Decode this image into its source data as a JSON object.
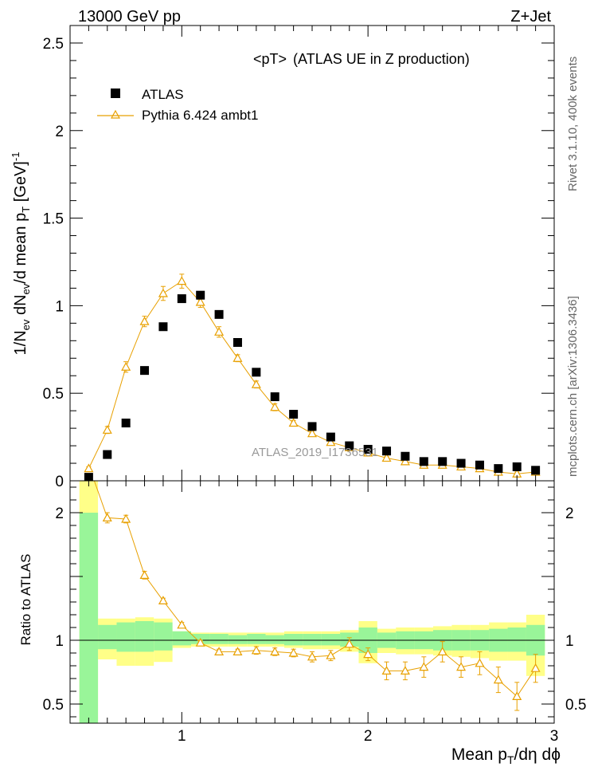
{
  "header": {
    "left": "13000 GeV pp",
    "right": "Z+Jet"
  },
  "side_labels": {
    "rivet": "Rivet 3.1.10,  400k events",
    "mcplots": "mcplots.cern.ch [arXiv:1306.3436]"
  },
  "chart_data": {
    "type": "scatter",
    "title": "<pT>",
    "title_note": "(ATLAS UE in Z production)",
    "watermark": "ATLAS_2019_I1736531",
    "xlabel": {
      "main": "Mean p",
      "sub": "T",
      "tail": "/dη dϕ"
    },
    "xlim": [
      0.4,
      3.0
    ],
    "x_ticks": [
      {
        "value": 1,
        "label": "1"
      },
      {
        "value": 2,
        "label": "2"
      },
      {
        "value": 3,
        "label": "3"
      }
    ],
    "top": {
      "ylabel": {
        "p1": "1/N",
        "s1": "ev",
        "p2": " dN",
        "s2": "ev",
        "p3": "/d mean p",
        "s3": "T",
        "p4": " [GeV]",
        "sup": "-1"
      },
      "ylim": [
        0,
        2.6
      ],
      "y_ticks": [
        {
          "value": 0,
          "label": "0"
        },
        {
          "value": 0.5,
          "label": "0.5"
        },
        {
          "value": 1,
          "label": "1"
        },
        {
          "value": 1.5,
          "label": "1.5"
        },
        {
          "value": 2,
          "label": "2"
        },
        {
          "value": 2.5,
          "label": "2.5"
        }
      ],
      "legend": {
        "position": "top-left",
        "data_label": "ATLAS",
        "mc_label": "Pythia 6.424 ambt1"
      },
      "data": {
        "name": "ATLAS",
        "x": [
          0.5,
          0.6,
          0.7,
          0.8,
          0.9,
          1.0,
          1.1,
          1.2,
          1.3,
          1.4,
          1.5,
          1.6,
          1.7,
          1.8,
          1.9,
          2.0,
          2.1,
          2.2,
          2.3,
          2.4,
          2.5,
          2.6,
          2.7,
          2.8,
          2.9
        ],
        "y": [
          0.02,
          0.15,
          0.33,
          0.63,
          0.88,
          1.04,
          1.06,
          0.95,
          0.79,
          0.62,
          0.48,
          0.38,
          0.31,
          0.25,
          0.2,
          0.18,
          0.17,
          0.14,
          0.11,
          0.11,
          0.1,
          0.09,
          0.07,
          0.08,
          0.06
        ]
      },
      "mc": {
        "name": "Pythia 6.424 ambt1",
        "color": "#e8a000",
        "x": [
          0.5,
          0.6,
          0.7,
          0.8,
          0.9,
          1.0,
          1.1,
          1.2,
          1.3,
          1.4,
          1.5,
          1.6,
          1.7,
          1.8,
          1.9,
          2.0,
          2.1,
          2.2,
          2.3,
          2.4,
          2.5,
          2.6,
          2.7,
          2.8,
          2.9
        ],
        "y": [
          0.07,
          0.29,
          0.65,
          0.91,
          1.07,
          1.14,
          1.02,
          0.85,
          0.7,
          0.55,
          0.42,
          0.33,
          0.27,
          0.22,
          0.19,
          0.16,
          0.13,
          0.11,
          0.09,
          0.09,
          0.08,
          0.07,
          0.05,
          0.04,
          0.05
        ],
        "err": [
          0.01,
          0.02,
          0.03,
          0.03,
          0.04,
          0.04,
          0.03,
          0.03,
          0.02,
          0.02,
          0.02,
          0.015,
          0.015,
          0.01,
          0.01,
          0.01,
          0.01,
          0.01,
          0.01,
          0.01,
          0.01,
          0.01,
          0.01,
          0.01,
          0.01
        ]
      }
    },
    "ratio": {
      "ylabel": "Ratio to ATLAS",
      "ylim": [
        0.35,
        2.25
      ],
      "y_ticks": [
        {
          "value": 0.5,
          "label": "0.5"
        },
        {
          "value": 1,
          "label": "1"
        },
        {
          "value": 2,
          "label": "2"
        }
      ],
      "band_green_color": "#99f599",
      "band_yellow_color": "#ffff88",
      "bins": [
        {
          "lo": 0.45,
          "hi": 0.55,
          "g": [
            0.35,
            2.0
          ],
          "y": [
            0.35,
            2.25
          ]
        },
        {
          "lo": 0.55,
          "hi": 0.65,
          "g": [
            0.93,
            1.12
          ],
          "y": [
            0.85,
            1.17
          ]
        },
        {
          "lo": 0.65,
          "hi": 0.75,
          "g": [
            0.91,
            1.14
          ],
          "y": [
            0.8,
            1.17
          ]
        },
        {
          "lo": 0.75,
          "hi": 0.85,
          "g": [
            0.91,
            1.15
          ],
          "y": [
            0.8,
            1.18
          ]
        },
        {
          "lo": 0.85,
          "hi": 0.95,
          "g": [
            0.92,
            1.14
          ],
          "y": [
            0.83,
            1.17
          ]
        },
        {
          "lo": 0.95,
          "hi": 1.05,
          "g": [
            0.96,
            1.07
          ],
          "y": [
            0.94,
            1.07
          ]
        },
        {
          "lo": 1.05,
          "hi": 1.15,
          "g": [
            0.97,
            1.05
          ],
          "y": [
            0.95,
            1.06
          ]
        },
        {
          "lo": 1.15,
          "hi": 1.25,
          "g": [
            0.97,
            1.05
          ],
          "y": [
            0.95,
            1.06
          ]
        },
        {
          "lo": 1.25,
          "hi": 1.35,
          "g": [
            0.97,
            1.04
          ],
          "y": [
            0.95,
            1.06
          ]
        },
        {
          "lo": 1.35,
          "hi": 1.45,
          "g": [
            0.97,
            1.05
          ],
          "y": [
            0.95,
            1.06
          ]
        },
        {
          "lo": 1.45,
          "hi": 1.55,
          "g": [
            0.97,
            1.04
          ],
          "y": [
            0.95,
            1.06
          ]
        },
        {
          "lo": 1.55,
          "hi": 1.65,
          "g": [
            0.96,
            1.05
          ],
          "y": [
            0.94,
            1.07
          ]
        },
        {
          "lo": 1.65,
          "hi": 1.75,
          "g": [
            0.96,
            1.05
          ],
          "y": [
            0.93,
            1.07
          ]
        },
        {
          "lo": 1.75,
          "hi": 1.85,
          "g": [
            0.96,
            1.05
          ],
          "y": [
            0.93,
            1.07
          ]
        },
        {
          "lo": 1.85,
          "hi": 1.95,
          "g": [
            0.95,
            1.06
          ],
          "y": [
            0.91,
            1.08
          ]
        },
        {
          "lo": 1.95,
          "hi": 2.05,
          "g": [
            0.9,
            1.1
          ],
          "y": [
            0.82,
            1.15
          ]
        },
        {
          "lo": 2.05,
          "hi": 2.15,
          "g": [
            0.94,
            1.06
          ],
          "y": [
            0.9,
            1.09
          ]
        },
        {
          "lo": 2.15,
          "hi": 2.25,
          "g": [
            0.93,
            1.07
          ],
          "y": [
            0.89,
            1.1
          ]
        },
        {
          "lo": 2.25,
          "hi": 2.35,
          "g": [
            0.93,
            1.07
          ],
          "y": [
            0.89,
            1.1
          ]
        },
        {
          "lo": 2.35,
          "hi": 2.45,
          "g": [
            0.92,
            1.08
          ],
          "y": [
            0.88,
            1.11
          ]
        },
        {
          "lo": 2.45,
          "hi": 2.55,
          "g": [
            0.92,
            1.08
          ],
          "y": [
            0.87,
            1.12
          ]
        },
        {
          "lo": 2.55,
          "hi": 2.65,
          "g": [
            0.92,
            1.08
          ],
          "y": [
            0.86,
            1.12
          ]
        },
        {
          "lo": 2.65,
          "hi": 2.75,
          "g": [
            0.91,
            1.09
          ],
          "y": [
            0.84,
            1.14
          ]
        },
        {
          "lo": 2.75,
          "hi": 2.85,
          "g": [
            0.91,
            1.1
          ],
          "y": [
            0.84,
            1.14
          ]
        },
        {
          "lo": 2.85,
          "hi": 2.95,
          "g": [
            0.88,
            1.12
          ],
          "y": [
            0.72,
            1.2
          ]
        }
      ],
      "mc_ratio": {
        "x": [
          0.6,
          0.7,
          0.8,
          0.9,
          1.0,
          1.1,
          1.2,
          1.3,
          1.4,
          1.5,
          1.6,
          1.7,
          1.8,
          1.9,
          2.0,
          2.1,
          2.2,
          2.3,
          2.4,
          2.5,
          2.6,
          2.7,
          2.8,
          2.9
        ],
        "y": [
          1.96,
          1.95,
          1.51,
          1.31,
          1.12,
          0.98,
          0.91,
          0.91,
          0.92,
          0.91,
          0.9,
          0.87,
          0.88,
          0.97,
          0.89,
          0.76,
          0.76,
          0.79,
          0.91,
          0.79,
          0.82,
          0.69,
          0.56,
          0.78
        ],
        "err": [
          0.04,
          0.03,
          0.03,
          0.02,
          0.02,
          0.02,
          0.02,
          0.02,
          0.03,
          0.03,
          0.03,
          0.04,
          0.04,
          0.05,
          0.05,
          0.07,
          0.07,
          0.08,
          0.08,
          0.08,
          0.09,
          0.1,
          0.11,
          0.11
        ]
      }
    }
  }
}
